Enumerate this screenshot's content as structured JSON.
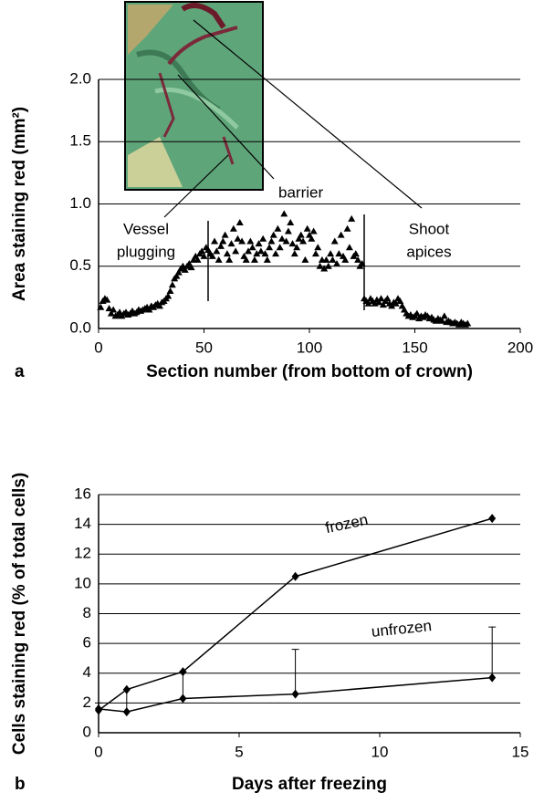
{
  "chart_data": [
    {
      "type": "scatter",
      "panel_label": "a",
      "x_label": "Section number (from bottom of crown)",
      "y_label": "Area staining red (mm²)",
      "annotations": [
        "barrier",
        "Vessel",
        "plugging",
        "Shoot",
        "apices"
      ],
      "xlim": [
        0,
        200
      ],
      "xticks": [
        0,
        50,
        100,
        150,
        200
      ],
      "ylim": [
        0,
        2
      ],
      "yticks": [
        {
          "value": 0,
          "label": "0.0"
        },
        0.5,
        {
          "value": 1,
          "label": "1.0"
        },
        1.5,
        {
          "value": 2,
          "label": "2.0"
        }
      ],
      "grid": true,
      "color": "#000000",
      "x": [
        1,
        2,
        3,
        4,
        5,
        6,
        7,
        8,
        9,
        10,
        11,
        12,
        13,
        14,
        15,
        16,
        17,
        18,
        19,
        20,
        21,
        22,
        23,
        24,
        25,
        26,
        27,
        28,
        29,
        30,
        31,
        32,
        33,
        34,
        35,
        36,
        37,
        38,
        39,
        40,
        41,
        42,
        43,
        44,
        45,
        46,
        47,
        48,
        49,
        50,
        51,
        52,
        53,
        54,
        55,
        56,
        57,
        58,
        59,
        60,
        61,
        62,
        63,
        64,
        65,
        66,
        67,
        68,
        69,
        70,
        71,
        72,
        73,
        74,
        75,
        76,
        77,
        78,
        79,
        80,
        81,
        82,
        83,
        84,
        85,
        86,
        87,
        88,
        89,
        90,
        91,
        92,
        93,
        94,
        95,
        96,
        97,
        98,
        99,
        100,
        101,
        102,
        103,
        104,
        105,
        106,
        107,
        108,
        109,
        110,
        111,
        112,
        113,
        114,
        115,
        116,
        117,
        118,
        119,
        120,
        121,
        122,
        123,
        124,
        125,
        126,
        127,
        128,
        129,
        130,
        131,
        132,
        133,
        134,
        135,
        136,
        137,
        138,
        139,
        140,
        141,
        142,
        143,
        144,
        145,
        146,
        147,
        148,
        149,
        150,
        151,
        152,
        153,
        154,
        155,
        156,
        157,
        158,
        159,
        160,
        161,
        162,
        163,
        164,
        165,
        166,
        167,
        168,
        169,
        170,
        171,
        172,
        173,
        174,
        175
      ],
      "values": [
        0.17,
        0.22,
        0.24,
        0.23,
        0.16,
        0.12,
        0.15,
        0.1,
        0.11,
        0.13,
        0.1,
        0.12,
        0.13,
        0.11,
        0.12,
        0.14,
        0.12,
        0.13,
        0.15,
        0.14,
        0.15,
        0.16,
        0.17,
        0.15,
        0.18,
        0.17,
        0.19,
        0.2,
        0.18,
        0.21,
        0.22,
        0.24,
        0.26,
        0.3,
        0.35,
        0.4,
        0.42,
        0.45,
        0.48,
        0.5,
        0.47,
        0.5,
        0.52,
        0.49,
        0.55,
        0.58,
        0.55,
        0.6,
        0.62,
        0.58,
        0.65,
        0.63,
        0.6,
        0.58,
        0.7,
        0.62,
        0.55,
        0.66,
        0.7,
        0.75,
        0.6,
        0.55,
        0.68,
        0.8,
        0.62,
        0.72,
        0.85,
        0.7,
        0.58,
        0.55,
        0.62,
        0.7,
        0.65,
        0.55,
        0.6,
        0.68,
        0.62,
        0.72,
        0.6,
        0.55,
        0.65,
        0.7,
        0.75,
        0.6,
        0.8,
        0.65,
        0.72,
        0.92,
        0.7,
        0.78,
        0.85,
        0.68,
        0.6,
        0.65,
        0.72,
        0.75,
        0.7,
        0.55,
        0.8,
        0.75,
        0.72,
        0.78,
        0.6,
        0.65,
        0.5,
        0.55,
        0.48,
        0.55,
        0.5,
        0.6,
        0.55,
        0.7,
        0.52,
        0.6,
        0.75,
        0.58,
        0.55,
        0.8,
        0.65,
        0.88,
        0.58,
        0.6,
        0.55,
        0.5,
        0.52,
        0.24,
        0.22,
        0.2,
        0.24,
        0.22,
        0.2,
        0.23,
        0.21,
        0.24,
        0.19,
        0.22,
        0.24,
        0.2,
        0.18,
        0.21,
        0.2,
        0.24,
        0.22,
        0.18,
        0.15,
        0.12,
        0.1,
        0.11,
        0.09,
        0.1,
        0.12,
        0.08,
        0.1,
        0.09,
        0.11,
        0.1,
        0.08,
        0.09,
        0.07,
        0.06,
        0.08,
        0.07,
        0.06,
        0.1,
        0.05,
        0.06,
        0.05,
        0.04,
        0.05,
        0.04,
        0.03,
        0.05,
        0.04,
        0.03,
        0.04
      ]
    },
    {
      "type": "line",
      "panel_label": "b",
      "x_label": "Days after freezing",
      "y_label": "Cells staining red (% of total cells)",
      "xlim": [
        0,
        15
      ],
      "xticks": [
        0,
        5,
        10,
        15
      ],
      "ylim": [
        0,
        16
      ],
      "yticks": [
        0,
        2,
        4,
        6,
        8,
        10,
        12,
        14,
        16
      ],
      "grid": true,
      "x": [
        0,
        1,
        3,
        7,
        14
      ],
      "series": [
        {
          "name": "frozen",
          "color": "#000000",
          "values": [
            1.5,
            2.9,
            4.1,
            10.5,
            14.4
          ]
        },
        {
          "name": "unfrozen",
          "color": "#000000",
          "values": [
            1.6,
            1.4,
            2.3,
            2.6,
            3.7
          ],
          "errors": [
            0.4,
            1.5,
            1.8,
            3.0,
            3.4
          ]
        }
      ]
    }
  ]
}
